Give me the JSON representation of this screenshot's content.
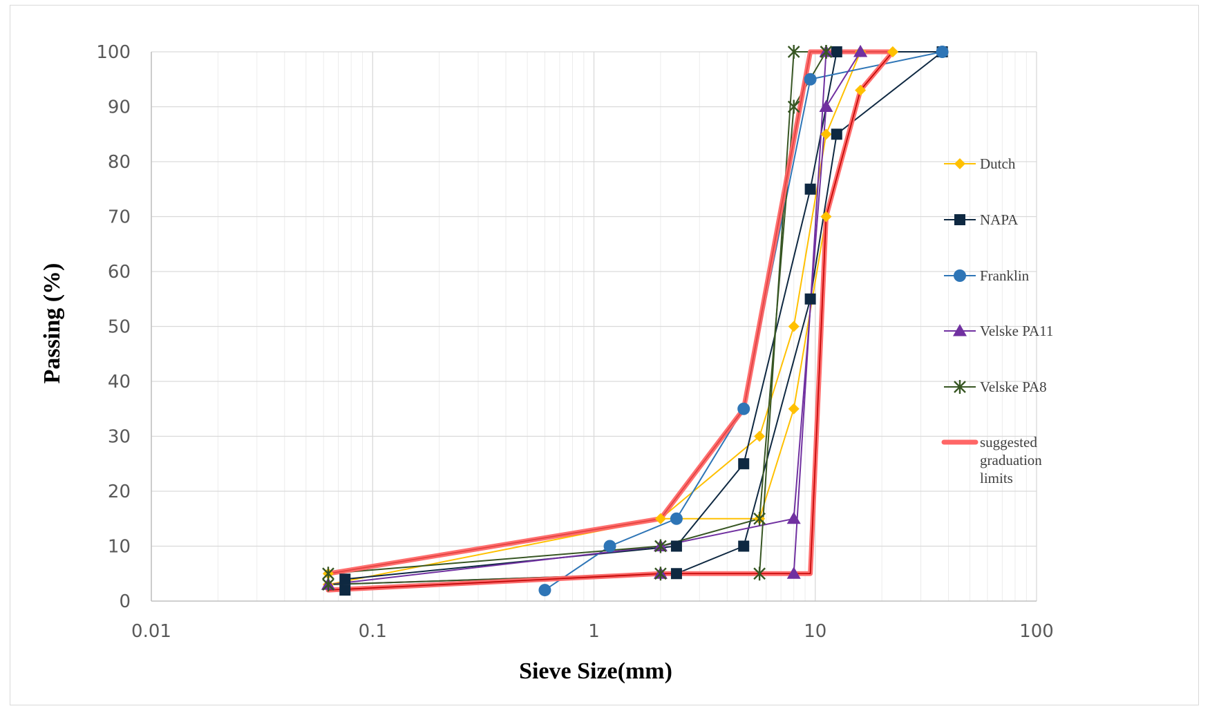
{
  "chart_data": {
    "type": "line",
    "xlabel": "Sieve Size(mm)",
    "ylabel": "Passing (%)",
    "xscale": "log",
    "xlim": [
      0.01,
      100
    ],
    "ylim": [
      0,
      100
    ],
    "x_tick_labels": [
      "0.01",
      "0.1",
      "1",
      "10",
      "100"
    ],
    "y_tick_labels": [
      "0",
      "10",
      "20",
      "30",
      "40",
      "50",
      "60",
      "70",
      "80",
      "90",
      "100"
    ],
    "grid": true,
    "legend_position": "right",
    "series": [
      {
        "name": "Dutch",
        "color": "#FFC000",
        "marker": "diamond",
        "lines": [
          {
            "x": [
              0.063,
              2,
              5.6,
              8,
              11.2,
              16,
              22.4
            ],
            "y": [
              3,
              15,
              30,
              50,
              85,
              100,
              100
            ]
          },
          {
            "x": [
              0.063,
              2,
              5.6,
              8,
              11.2,
              16,
              22.4
            ],
            "y": [
              5,
              15,
              15,
              35,
              70,
              93,
              100
            ]
          }
        ]
      },
      {
        "name": "NAPA",
        "color": "#0E2841",
        "marker": "square",
        "lines": [
          {
            "x": [
              0.075,
              2.36,
              4.75,
              9.5,
              12.5,
              37.5
            ],
            "y": [
              4,
              10,
              25,
              75,
              100,
              100
            ]
          },
          {
            "x": [
              0.075,
              2.36,
              4.75,
              9.5,
              12.5,
              37.5
            ],
            "y": [
              2,
              5,
              10,
              55,
              85,
              100
            ]
          }
        ]
      },
      {
        "name": "Franklin",
        "color": "#2E75B6",
        "marker": "circle",
        "lines": [
          {
            "x": [
              0.6,
              1.18,
              2.36,
              4.75,
              9.5,
              37.5
            ],
            "y": [
              2,
              10,
              15,
              35,
              95,
              100
            ]
          }
        ]
      },
      {
        "name": "Velske PA11",
        "color": "#7030A0",
        "marker": "triangle",
        "lines": [
          {
            "x": [
              0.063,
              2,
              8,
              11.2,
              16
            ],
            "y": [
              3,
              10,
              15,
              90,
              100
            ]
          },
          {
            "x": [
              0.063,
              2,
              8,
              11.2,
              16
            ],
            "y": [
              3,
              5,
              5,
              100,
              100
            ]
          }
        ]
      },
      {
        "name": "Velske PA8",
        "color": "#375623",
        "marker": "star",
        "lines": [
          {
            "x": [
              0.063,
              2,
              5.6,
              8,
              11.2
            ],
            "y": [
              5,
              10,
              15,
              90,
              100
            ]
          },
          {
            "x": [
              0.063,
              2,
              5.6,
              8,
              11.2
            ],
            "y": [
              3,
              5,
              5,
              100,
              100
            ]
          }
        ]
      },
      {
        "name": "suggested graduation limits",
        "color": "#FF6666",
        "marker": "none",
        "lines": [
          {
            "x": [
              0.063,
              2,
              4.75,
              9.5,
              22.4
            ],
            "y": [
              5,
              15,
              35,
              100,
              100
            ]
          },
          {
            "x": [
              0.063,
              2,
              9.5,
              11.2,
              16,
              22.4
            ],
            "y": [
              2,
              5,
              5,
              70,
              93,
              100
            ]
          }
        ]
      }
    ]
  },
  "legend": [
    {
      "lines": [
        "Dutch"
      ]
    },
    {
      "lines": [
        "NAPA"
      ]
    },
    {
      "lines": [
        "Franklin"
      ]
    },
    {
      "lines": [
        "Velske PA11"
      ]
    },
    {
      "lines": [
        "Velske PA8"
      ]
    },
    {
      "lines": [
        "suggested",
        "graduation",
        "limits"
      ]
    }
  ]
}
